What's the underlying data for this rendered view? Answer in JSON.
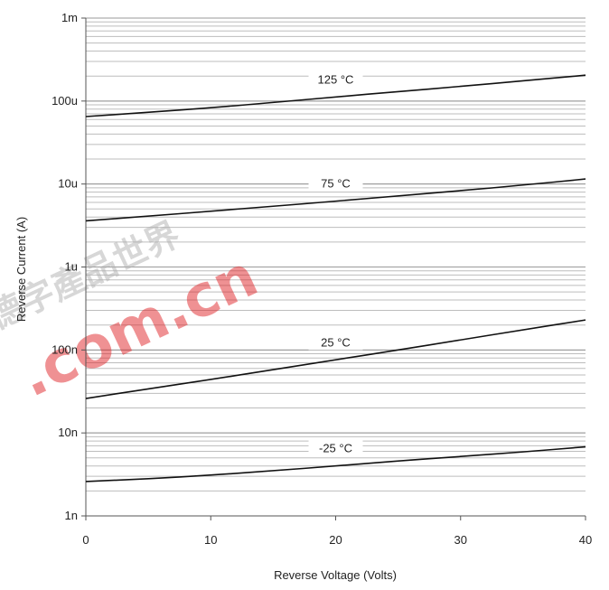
{
  "chart_data": {
    "type": "line",
    "title": "",
    "xlabel": "Reverse Voltage (Volts)",
    "ylabel": "Reverse Current (A)",
    "xlim": [
      0,
      40
    ],
    "ylim": [
      1e-09,
      0.001
    ],
    "yscale": "log",
    "x_ticks": [
      0,
      10,
      20,
      30,
      40
    ],
    "x_tick_labels": [
      "0",
      "10",
      "20",
      "30",
      "40"
    ],
    "y_ticks": [
      1e-09,
      1e-08,
      1e-07,
      1e-06,
      1e-05,
      0.0001,
      0.001
    ],
    "y_tick_labels": [
      "1n",
      "10n",
      "100n",
      "1u",
      "10u",
      "100u",
      "1m"
    ],
    "grid": {
      "horizontal": true,
      "vertical": false,
      "minor_log": true
    },
    "series": [
      {
        "name": "125 °C",
        "color": "#111111",
        "x": [
          0,
          5,
          10,
          15,
          20,
          25,
          30,
          35,
          40
        ],
        "y": [
          6.5e-05,
          7.3e-05,
          8.3e-05,
          9.6e-05,
          0.000112,
          0.00013,
          0.00015,
          0.000175,
          0.000205
        ]
      },
      {
        "name": "75 °C",
        "color": "#111111",
        "x": [
          0,
          5,
          10,
          15,
          20,
          25,
          30,
          35,
          40
        ],
        "y": [
          3.6e-06,
          4.1e-06,
          4.7e-06,
          5.4e-06,
          6.2e-06,
          7.2e-06,
          8.3e-06,
          9.7e-06,
          1.15e-05
        ]
      },
      {
        "name": "25 °C",
        "color": "#111111",
        "x": [
          0,
          5,
          10,
          15,
          20,
          25,
          30,
          35,
          40
        ],
        "y": [
          2.6e-08,
          3.4e-08,
          4.4e-08,
          5.8e-08,
          7.6e-08,
          1e-07,
          1.32e-07,
          1.75e-07,
          2.3e-07
        ]
      },
      {
        "name": "-25 °C",
        "color": "#111111",
        "x": [
          0,
          5,
          10,
          15,
          20,
          25,
          30,
          35,
          40
        ],
        "y": [
          2.6e-09,
          2.8e-09,
          3.1e-09,
          3.5e-09,
          4e-09,
          4.6e-09,
          5.2e-09,
          5.9e-09,
          6.8e-09
        ]
      }
    ]
  },
  "watermark": {
    "text": ".com.cn",
    "chars": "德字產品世界",
    "color": "#e0262a"
  }
}
